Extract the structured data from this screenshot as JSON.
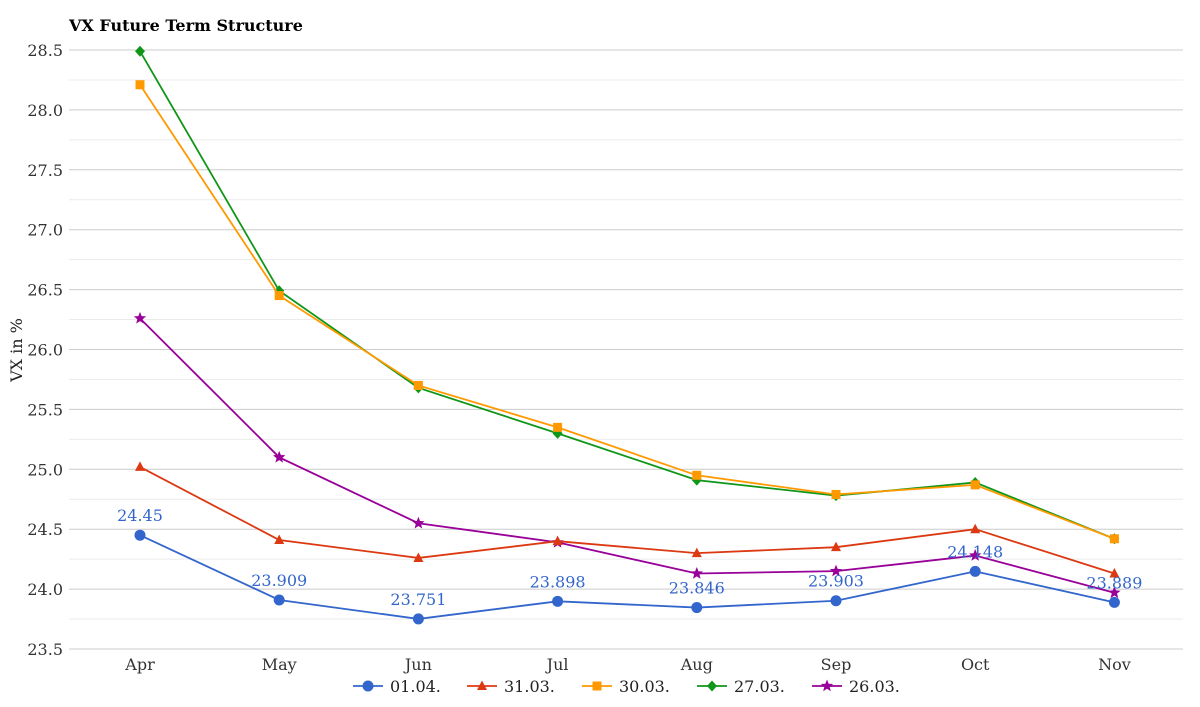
{
  "chart_data": {
    "type": "line",
    "title": "VX Future Term Structure",
    "xlabel": "",
    "ylabel": "VX in %",
    "categories": [
      "Apr",
      "May",
      "Jun",
      "Jul",
      "Aug",
      "Sep",
      "Oct",
      "Nov"
    ],
    "ylim": [
      23.5,
      28.5
    ],
    "yticks": [
      "23.5",
      "24.0",
      "24.5",
      "25.0",
      "25.5",
      "26.0",
      "26.5",
      "27.0",
      "27.5",
      "28.0",
      "28.5"
    ],
    "grid": true,
    "legend_position": "bottom",
    "series": [
      {
        "name": "01.04.",
        "color": "#3366cc",
        "marker": "circle",
        "values": [
          24.45,
          23.909,
          23.751,
          23.898,
          23.846,
          23.903,
          24.148,
          23.889
        ],
        "labels": [
          "24.45",
          "23.909",
          "23.751",
          "23.898",
          "23.846",
          "23.903",
          "24.148",
          "23.889"
        ]
      },
      {
        "name": "31.03.",
        "color": "#dc3912",
        "marker": "triangle",
        "values": [
          25.02,
          24.41,
          24.26,
          24.4,
          24.3,
          24.35,
          24.5,
          24.13
        ]
      },
      {
        "name": "30.03.",
        "color": "#ff9900",
        "marker": "square",
        "values": [
          28.21,
          26.45,
          25.7,
          25.35,
          24.95,
          24.79,
          24.87,
          24.42
        ]
      },
      {
        "name": "27.03.",
        "color": "#109618",
        "marker": "diamond",
        "values": [
          28.49,
          26.49,
          25.68,
          25.3,
          24.91,
          24.78,
          24.89,
          24.42
        ]
      },
      {
        "name": "26.03.",
        "color": "#990099",
        "marker": "star",
        "values": [
          26.26,
          25.1,
          24.55,
          24.39,
          24.13,
          24.15,
          24.28,
          23.97
        ]
      }
    ]
  }
}
